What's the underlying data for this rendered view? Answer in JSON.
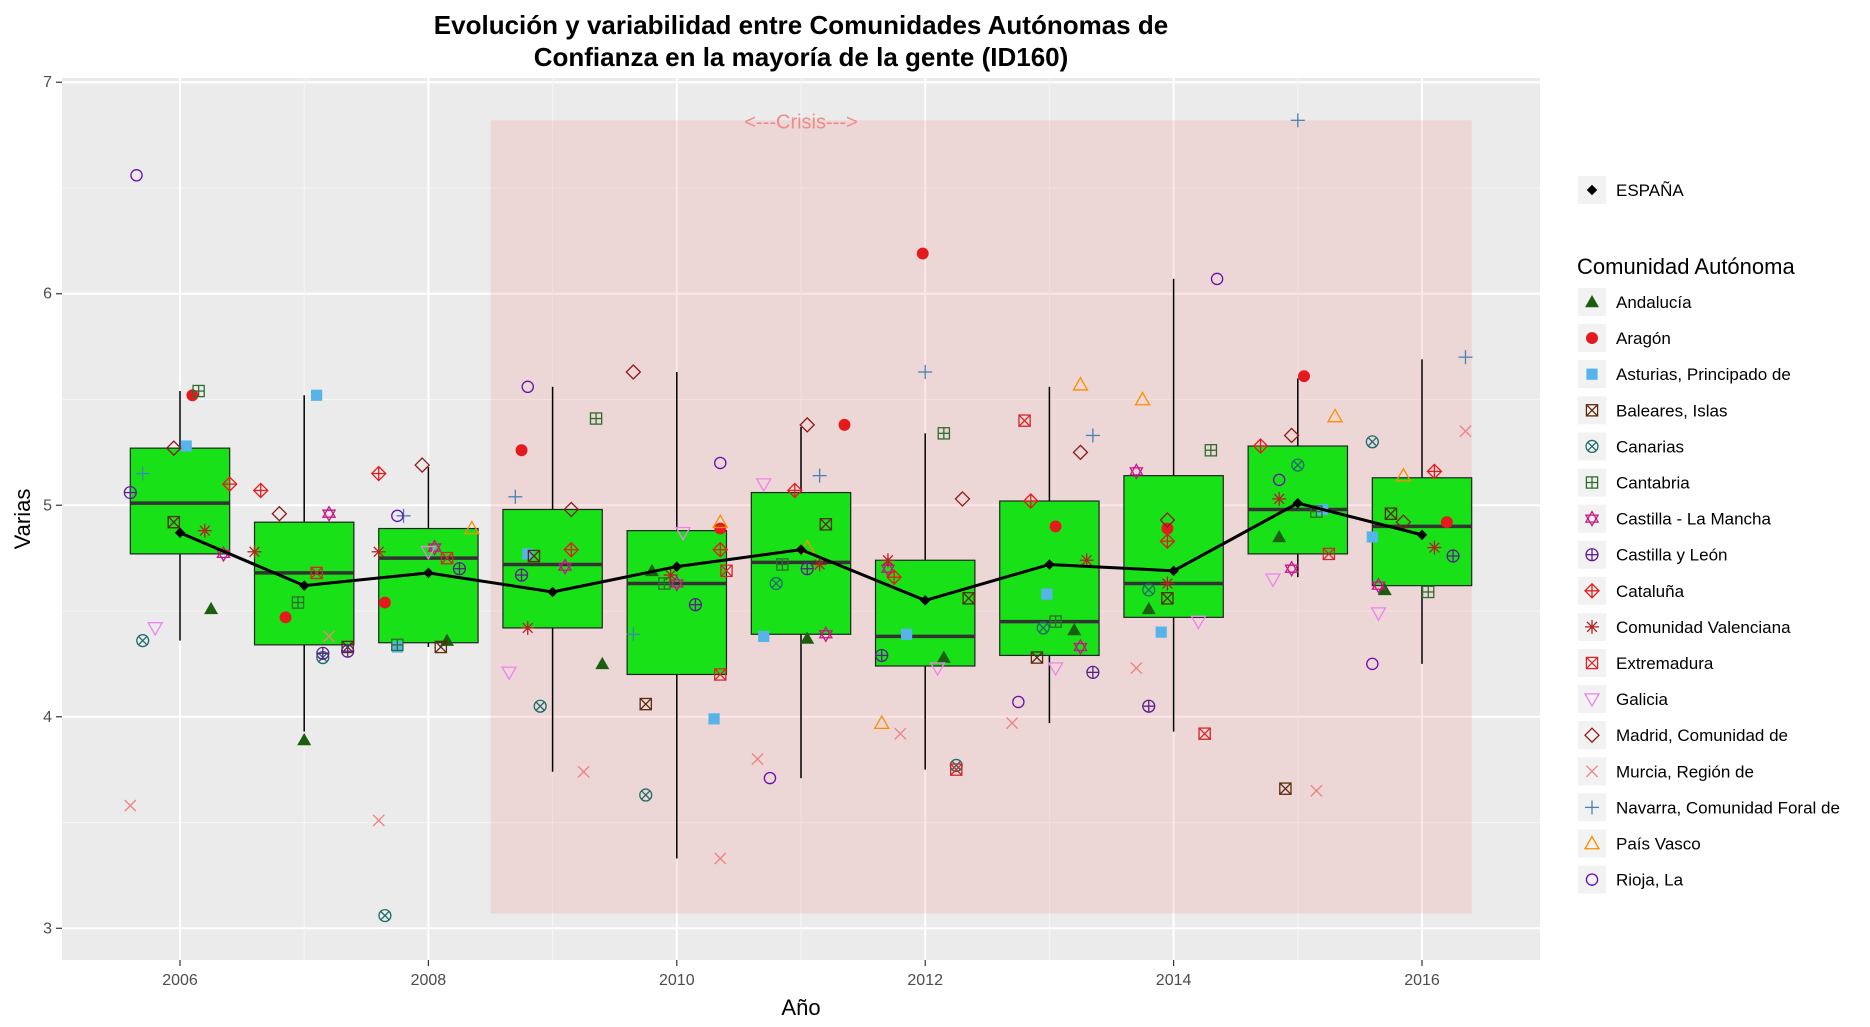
{
  "chart_data": {
    "type": "box",
    "title_line1": "Evolución y variabilidad entre Comunidades Autónomas de",
    "title_line2": "Confianza en la mayoría de la gente (ID160)",
    "xlabel": "Año",
    "ylabel": "Varias",
    "xlim": [
      2005.05,
      2016.95
    ],
    "ylim": [
      2.85,
      7.02
    ],
    "x_ticks": [
      2006,
      2008,
      2010,
      2012,
      2014,
      2016
    ],
    "y_ticks": [
      3,
      4,
      5,
      6,
      7
    ],
    "grid": true,
    "legend_position": "right",
    "crisis": {
      "label": "<---Crisis--->",
      "x_range": [
        2008.5,
        2016.4
      ],
      "y_range": [
        3.07,
        6.82
      ],
      "color": "#f08080"
    },
    "boxes": [
      {
        "year": 2006,
        "min": 4.36,
        "q1": 4.77,
        "median": 5.01,
        "q3": 5.27,
        "max": 5.54
      },
      {
        "year": 2007,
        "min": 3.93,
        "q1": 4.34,
        "median": 4.68,
        "q3": 4.92,
        "max": 5.52
      },
      {
        "year": 2008,
        "min": 4.33,
        "q1": 4.35,
        "median": 4.75,
        "q3": 4.89,
        "max": 5.18
      },
      {
        "year": 2009,
        "min": 3.74,
        "q1": 4.42,
        "median": 4.72,
        "q3": 4.98,
        "max": 5.56
      },
      {
        "year": 2010,
        "min": 3.33,
        "q1": 4.2,
        "median": 4.63,
        "q3": 4.88,
        "max": 5.63
      },
      {
        "year": 2011,
        "min": 3.71,
        "q1": 4.39,
        "median": 4.73,
        "q3": 5.06,
        "max": 5.37
      },
      {
        "year": 2012,
        "min": 3.75,
        "q1": 4.24,
        "median": 4.38,
        "q3": 4.74,
        "max": 5.34
      },
      {
        "year": 2013,
        "min": 3.97,
        "q1": 4.29,
        "median": 4.45,
        "q3": 5.02,
        "max": 5.56
      },
      {
        "year": 2014,
        "min": 3.93,
        "q1": 4.47,
        "median": 4.63,
        "q3": 5.14,
        "max": 6.07
      },
      {
        "year": 2015,
        "min": 4.66,
        "q1": 4.77,
        "median": 4.98,
        "q3": 5.28,
        "max": 5.6
      },
      {
        "year": 2016,
        "min": 4.25,
        "q1": 4.62,
        "median": 4.9,
        "q3": 5.13,
        "max": 5.69
      }
    ],
    "espana": {
      "name": "ESPAÑA",
      "x": [
        2006,
        2007,
        2008,
        2009,
        2010,
        2011,
        2012,
        2013,
        2014,
        2015,
        2016
      ],
      "y": [
        4.87,
        4.62,
        4.68,
        4.59,
        4.71,
        4.79,
        4.55,
        4.72,
        4.69,
        5.01,
        4.86
      ]
    },
    "legend_title": "Comunidad Autónoma",
    "series": [
      {
        "name": "Andalucía",
        "shape": "triangle-filled",
        "color": "#1a5e0e",
        "x": [
          2006.25,
          2007.0,
          2008.15,
          2009.4,
          2009.8,
          2011.05,
          2012.15,
          2013.2,
          2013.8,
          2014.85,
          2015.7
        ],
        "y": [
          4.51,
          3.89,
          4.36,
          4.25,
          4.69,
          4.37,
          4.28,
          4.41,
          4.51,
          4.85,
          4.6
        ]
      },
      {
        "name": "Aragón",
        "shape": "circle-filled",
        "color": "#e41a1c",
        "x": [
          2006.1,
          2006.85,
          2007.65,
          2008.75,
          2010.35,
          2011.35,
          2011.98,
          2013.05,
          2013.95,
          2015.05,
          2016.2
        ],
        "y": [
          5.52,
          4.47,
          4.54,
          5.26,
          4.89,
          5.38,
          6.19,
          4.9,
          4.89,
          5.61,
          4.92
        ]
      },
      {
        "name": "Asturias, Principado de",
        "shape": "square-filled",
        "color": "#56b4e9",
        "x": [
          2006.05,
          2007.1,
          2007.75,
          2008.8,
          2010.3,
          2010.7,
          2011.85,
          2012.98,
          2013.9,
          2015.2,
          2015.6
        ],
        "y": [
          5.28,
          5.52,
          4.33,
          4.77,
          3.99,
          4.38,
          4.39,
          4.58,
          4.4,
          4.98,
          4.85
        ]
      },
      {
        "name": "Baleares, Islas",
        "shape": "square-x",
        "color": "#5a2a0a",
        "x": [
          2005.95,
          2007.35,
          2008.1,
          2008.85,
          2009.75,
          2011.2,
          2012.35,
          2012.9,
          2013.95,
          2014.9,
          2015.75
        ],
        "y": [
          4.92,
          4.33,
          4.33,
          4.76,
          4.06,
          4.91,
          4.56,
          4.28,
          4.56,
          3.66,
          4.96
        ]
      },
      {
        "name": "Canarias",
        "shape": "circle-x",
        "color": "#1f6b6b",
        "x": [
          2005.7,
          2007.15,
          2007.65,
          2008.9,
          2009.75,
          2010.8,
          2012.25,
          2012.95,
          2013.8,
          2015.0,
          2015.6
        ],
        "y": [
          4.36,
          4.28,
          3.06,
          4.05,
          3.63,
          4.63,
          3.77,
          4.42,
          4.6,
          5.19,
          5.3
        ]
      },
      {
        "name": "Cantabria",
        "shape": "square-plus",
        "color": "#2f6d2f",
        "x": [
          2006.15,
          2006.95,
          2007.75,
          2009.35,
          2009.9,
          2010.85,
          2012.15,
          2013.05,
          2014.3,
          2015.15,
          2016.05
        ],
        "y": [
          5.54,
          4.54,
          4.34,
          5.41,
          4.63,
          4.72,
          5.34,
          4.45,
          5.26,
          4.97,
          4.59
        ]
      },
      {
        "name": "Castilla - La Mancha",
        "shape": "star",
        "color": "#c71585",
        "x": [
          2006.35,
          2007.2,
          2008.05,
          2009.1,
          2010.0,
          2011.2,
          2011.7,
          2013.25,
          2013.7,
          2014.95,
          2015.65
        ],
        "y": [
          4.77,
          4.96,
          4.8,
          4.71,
          4.63,
          4.39,
          4.7,
          4.33,
          5.16,
          4.7,
          4.62
        ]
      },
      {
        "name": "Castilla y León",
        "shape": "circle-plus",
        "color": "#5b1f8a",
        "x": [
          2005.6,
          2007.15,
          2007.35,
          2008.25,
          2008.75,
          2010.15,
          2011.05,
          2011.65,
          2013.35,
          2013.8,
          2016.25
        ],
        "y": [
          5.06,
          4.3,
          4.31,
          4.7,
          4.67,
          4.53,
          4.7,
          4.29,
          4.21,
          4.05,
          4.76
        ]
      },
      {
        "name": "Cataluña",
        "shape": "diamond-plus",
        "color": "#e41a1c",
        "x": [
          2006.4,
          2006.65,
          2007.6,
          2009.15,
          2010.35,
          2010.95,
          2011.75,
          2012.85,
          2013.95,
          2014.7,
          2016.1
        ],
        "y": [
          5.1,
          5.07,
          5.15,
          4.79,
          4.79,
          5.07,
          4.66,
          5.02,
          4.83,
          5.28,
          5.16
        ]
      },
      {
        "name": "Comunidad Valenciana",
        "shape": "asterisk",
        "color": "#b22222",
        "x": [
          2006.2,
          2006.6,
          2007.6,
          2008.8,
          2009.95,
          2011.15,
          2011.7,
          2013.3,
          2013.95,
          2014.85,
          2016.1
        ],
        "y": [
          4.88,
          4.78,
          4.78,
          4.42,
          4.67,
          4.72,
          4.74,
          4.74,
          4.63,
          5.03,
          4.8
        ]
      },
      {
        "name": "Extremadura",
        "shape": "square-cross",
        "color": "#d62728",
        "x": [
          2007.1,
          2008.15,
          2010.35,
          2010.4,
          2012.25,
          2012.8,
          2014.25,
          2015.25
        ],
        "y": [
          4.68,
          4.75,
          4.2,
          4.69,
          3.75,
          5.4,
          3.92,
          4.77
        ]
      },
      {
        "name": "Galicia",
        "shape": "triangle-down",
        "color": "#ee82ee",
        "x": [
          2005.8,
          2008.0,
          2008.65,
          2010.05,
          2010.7,
          2012.1,
          2013.05,
          2014.2,
          2014.8,
          2015.65
        ],
        "y": [
          4.42,
          4.78,
          4.21,
          4.87,
          5.1,
          4.23,
          4.23,
          4.45,
          4.65,
          4.49
        ]
      },
      {
        "name": "Madrid, Comunidad de",
        "shape": "diamond",
        "color": "#8b1a1a",
        "x": [
          2005.95,
          2006.8,
          2007.95,
          2009.15,
          2009.65,
          2011.05,
          2012.3,
          2013.25,
          2013.95,
          2014.95,
          2015.85
        ],
        "y": [
          5.27,
          4.96,
          5.19,
          4.98,
          5.63,
          5.38,
          5.03,
          5.25,
          4.93,
          5.33,
          4.92
        ]
      },
      {
        "name": "Murcia, Región de",
        "shape": "x",
        "color": "#f08080",
        "x": [
          2005.6,
          2007.2,
          2007.6,
          2009.25,
          2010.35,
          2010.65,
          2011.8,
          2012.7,
          2013.7,
          2015.15,
          2016.35
        ],
        "y": [
          3.58,
          4.38,
          3.51,
          3.74,
          3.33,
          3.8,
          3.92,
          3.97,
          4.23,
          3.65,
          5.35
        ]
      },
      {
        "name": "Navarra, Comunidad Foral de",
        "shape": "plus",
        "color": "#4682b4",
        "x": [
          2005.7,
          2007.8,
          2008.7,
          2009.65,
          2011.15,
          2012.0,
          2013.35,
          2015.0,
          2016.35
        ],
        "y": [
          5.15,
          4.95,
          5.04,
          4.39,
          5.14,
          5.63,
          5.33,
          6.82,
          5.7
        ]
      },
      {
        "name": "País Vasco",
        "shape": "triangle",
        "color": "#ff8c00",
        "x": [
          2008.35,
          2010.35,
          2011.05,
          2011.65,
          2013.25,
          2013.75,
          2015.3,
          2015.85
        ],
        "y": [
          4.89,
          4.92,
          4.8,
          3.97,
          5.57,
          5.5,
          5.42,
          5.14
        ]
      },
      {
        "name": "Rioja, La",
        "shape": "circle",
        "color": "#6a0dad",
        "x": [
          2005.65,
          2007.75,
          2008.8,
          2010.35,
          2010.75,
          2012.75,
          2014.35,
          2014.85,
          2015.6
        ],
        "y": [
          6.56,
          4.95,
          5.56,
          5.2,
          3.71,
          4.07,
          6.07,
          5.12,
          4.25
        ]
      }
    ]
  }
}
